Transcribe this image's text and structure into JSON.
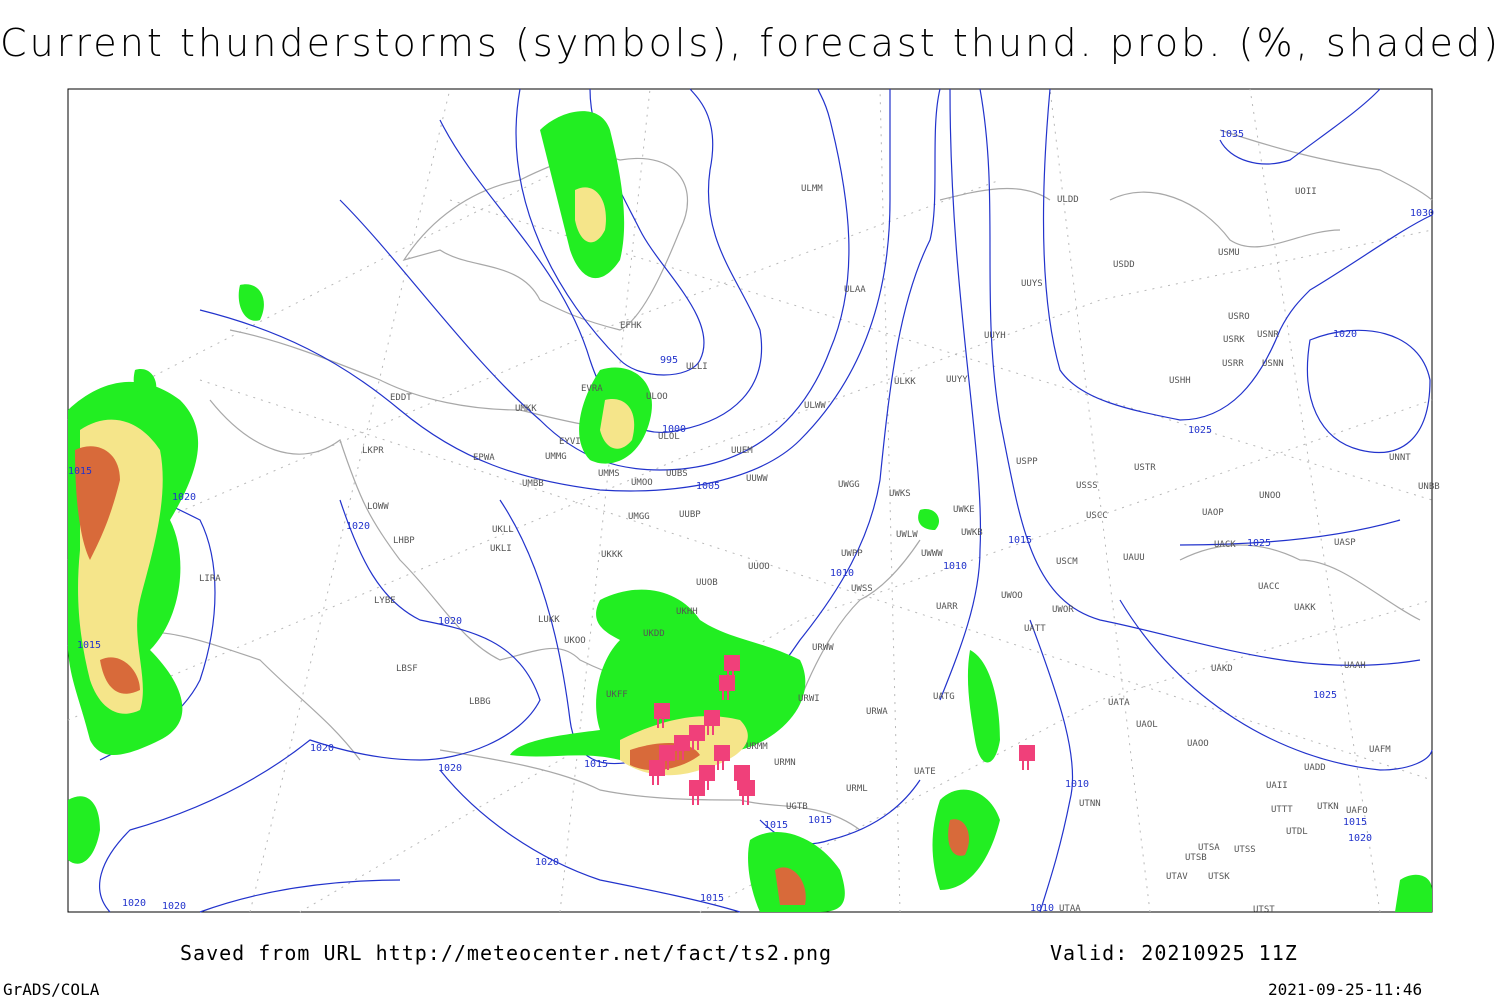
{
  "header": {
    "title": "Current thunderstorms (symbols), forecast thund. prob. (%, shaded)"
  },
  "footer": {
    "saved": "Saved from URL http://meteocenter.net/fact/ts2.png",
    "valid": "Valid: 20210925 11Z",
    "software": "GrADS/COLA",
    "timestamp": "2021-09-25-11:46"
  },
  "isobar_labels": [
    "995",
    "1000",
    "1005",
    "1010",
    "1010",
    "1010",
    "1010",
    "1015",
    "1015",
    "1015",
    "1015",
    "1015",
    "1015",
    "1015",
    "1015",
    "1020",
    "1020",
    "1020",
    "1020",
    "1020",
    "1020",
    "1020",
    "1020",
    "1020",
    "1020",
    "1025",
    "1025",
    "1025",
    "1035",
    "1030"
  ],
  "stations": [
    "EDDT",
    "LKPR",
    "LOWW",
    "LHBP",
    "LIRA",
    "LYBE",
    "LBSF",
    "LBBG",
    "LUKK",
    "UKOO",
    "UKFF",
    "UKKK",
    "UKLI",
    "UKLL",
    "UMBB",
    "EPWA",
    "UMMG",
    "EYVI",
    "UMKK",
    "EVRA",
    "ULOO",
    "ULOL",
    "UMMS",
    "UMOO",
    "UUBS",
    "UUEM",
    "UUWW",
    "UMGG",
    "UUBP",
    "UUOO",
    "UUOB",
    "UKHH",
    "UKDD",
    "ULWW",
    "ULLI",
    "EFHK",
    "ULAA",
    "UWGG",
    "UWKS",
    "UWKE",
    "UWKB",
    "UWLW",
    "UWWW",
    "UWPP",
    "UWSS",
    "UARR",
    "URWI",
    "URWW",
    "URWA",
    "URMM",
    "URMN",
    "URML",
    "UATG",
    "UATE",
    "UATT",
    "UATA",
    "UAOL",
    "UAOO",
    "UAKD",
    "UACC",
    "UAKK",
    "UAAH",
    "UAFM",
    "UADD",
    "UAII",
    "UTTT",
    "UTKN",
    "UAFO",
    "UTDL",
    "UTSS",
    "UTSA",
    "UTSB",
    "UTAV",
    "UTSK",
    "UTST",
    "UTAA",
    "UTNN",
    "UWOO",
    "UWOR",
    "USCM",
    "UAUU",
    "UACK",
    "UASP",
    "USCC",
    "UAOP",
    "UNOO",
    "USSS",
    "USTR",
    "USPP",
    "UNNT",
    "UNBB",
    "USHH",
    "USRR",
    "USNN",
    "USRK",
    "USNR",
    "USRO",
    "USMU",
    "USDD",
    "UUYS",
    "UUYH",
    "UUYY",
    "ULKK",
    "ULDD",
    "UOII",
    "ULMM",
    "UGTB"
  ]
}
